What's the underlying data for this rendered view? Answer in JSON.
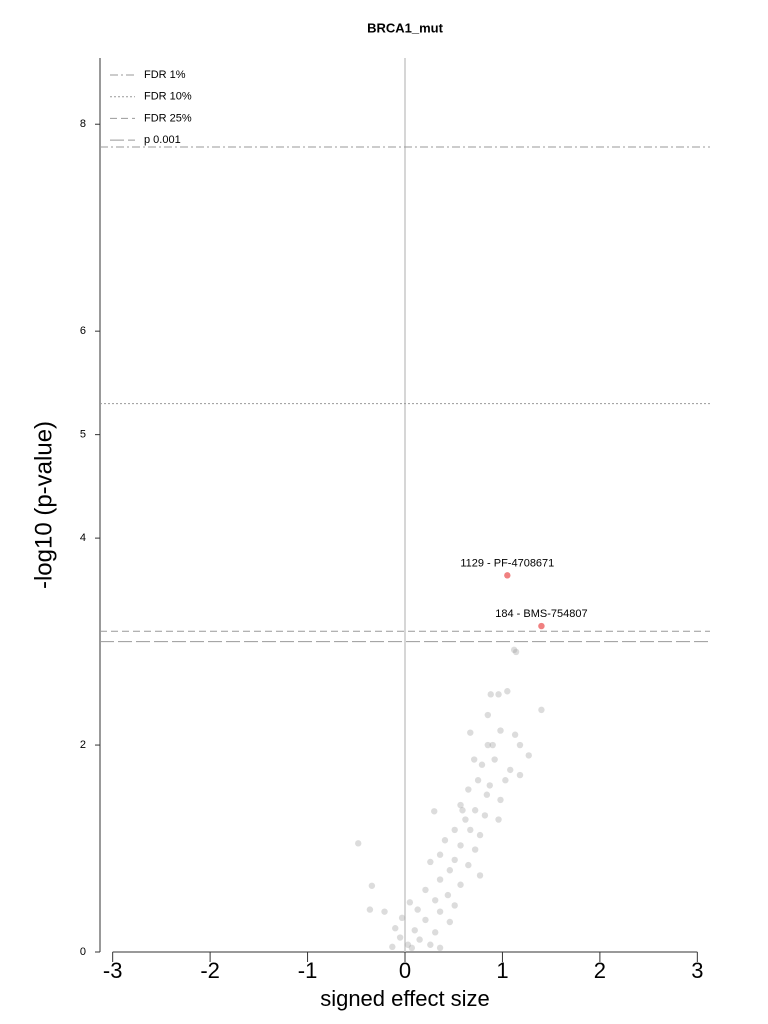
{
  "chart_data": {
    "type": "scatter",
    "title": "BRCA1_mut",
    "x_label": "signed effect size",
    "y_label": "-log10 (p-value)",
    "xlim": [
      -3.13,
      3.13
    ],
    "ylim": [
      0,
      8.64
    ],
    "xticks": [
      -3,
      -2,
      -1,
      0,
      1,
      2,
      3
    ],
    "yticks": [
      0,
      2,
      4,
      5,
      6,
      8
    ],
    "point_color": "#9a9a9a",
    "highlight_color": "#f08080",
    "x": [
      1.12,
      1.14,
      0.88,
      0.96,
      1.05,
      1.4,
      0.85,
      0.98,
      0.67,
      0.85,
      1.13,
      1.27,
      0.79,
      0.92,
      1.08,
      1.18,
      0.75,
      0.87,
      0.65,
      0.98,
      0.57,
      0.72,
      0.3,
      0.82,
      0.62,
      0.51,
      0.67,
      0.77,
      0.41,
      0.57,
      -0.48,
      0.72,
      0.36,
      0.51,
      0.65,
      0.26,
      0.46,
      0.77,
      -0.34,
      0.36,
      0.57,
      0.21,
      0.44,
      0.05,
      0.31,
      0.51,
      -0.36,
      -0.21,
      0.13,
      0.36,
      -0.03,
      0.21,
      0.46,
      -0.1,
      0.1,
      0.31,
      -0.05,
      0.15,
      0.03,
      0.26,
      0.07,
      0.36,
      -0.13,
      0.59,
      0.9,
      1.03,
      0.96,
      1.18,
      0.84,
      0.71
    ],
    "y": [
      2.92,
      2.9,
      2.49,
      2.49,
      2.52,
      2.34,
      2.29,
      2.14,
      2.12,
      2.0,
      2.1,
      1.9,
      1.81,
      1.86,
      1.76,
      1.71,
      1.66,
      1.61,
      1.57,
      1.47,
      1.42,
      1.37,
      1.36,
      1.32,
      1.28,
      1.18,
      1.18,
      1.13,
      1.08,
      1.03,
      1.05,
      0.99,
      0.94,
      0.89,
      0.84,
      0.87,
      0.79,
      0.74,
      0.64,
      0.7,
      0.65,
      0.6,
      0.55,
      0.48,
      0.5,
      0.45,
      0.41,
      0.39,
      0.41,
      0.39,
      0.33,
      0.31,
      0.29,
      0.23,
      0.21,
      0.19,
      0.14,
      0.12,
      0.07,
      0.07,
      0.04,
      0.04,
      0.05,
      1.37,
      2.0,
      1.66,
      1.28,
      2.0,
      1.52,
      1.86
    ],
    "highlights": [
      {
        "label": "1129 - PF-4708671",
        "x": 1.05,
        "y": 3.64
      },
      {
        "label": "184 - BMS-754807",
        "x": 1.4,
        "y": 3.15
      }
    ],
    "thresholds": [
      {
        "name": "FDR 1%",
        "value": 7.78,
        "style": "dashdot"
      },
      {
        "name": "FDR 10%",
        "value": 5.3,
        "style": "dotted"
      },
      {
        "name": "FDR 25%",
        "value": 3.1,
        "style": "dashed"
      },
      {
        "name": "p 0.001",
        "value": 3.0,
        "style": "longdash"
      }
    ]
  }
}
